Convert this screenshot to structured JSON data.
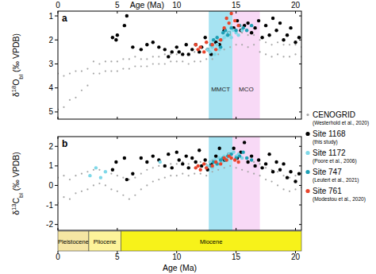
{
  "chart_data": [
    {
      "type": "scatter",
      "panel": "a",
      "xlabel": "Age (Ma)",
      "ylabel": "δ18Obl (‰ VPDB)",
      "xlim": [
        0,
        20.5
      ],
      "ylim": [
        5.3,
        0.8
      ],
      "xticks": [
        0,
        5,
        10,
        15,
        20
      ],
      "yticks": [
        1,
        2,
        3,
        4,
        5
      ],
      "legend": "right",
      "bands": [
        {
          "text": "MMCT",
          "x0": 12.7,
          "x1": 14.7,
          "color": "#a6e3f2"
        },
        {
          "text": "MCO",
          "x0": 14.7,
          "x1": 17,
          "color": "#f8d9f6"
        }
      ],
      "series": [
        {
          "name": "CENOGRID",
          "reference": "(Westerhold et al., 2020)",
          "color": "#a6a6a6",
          "marker": "dot",
          "x": [
            0,
            0,
            0.5,
            0.5,
            1,
            1,
            1.5,
            1.5,
            2,
            2,
            2.5,
            2.5,
            3,
            3,
            3.5,
            3.5,
            4,
            4,
            4.5,
            4.5,
            5,
            5,
            5.5,
            5.5,
            6,
            6,
            6.5,
            6.5,
            7,
            7,
            7.5,
            7.5,
            8,
            8,
            8.5,
            8.5,
            9,
            9,
            9.5,
            9.5,
            10,
            10,
            10.5,
            10.5,
            11,
            11,
            11.5,
            11.5,
            12,
            12,
            12.5,
            12.5,
            13,
            13,
            13.5,
            13.5,
            14,
            14,
            14.5,
            14.5,
            15,
            15,
            15.5,
            15.5,
            16,
            16,
            16.5,
            16.5,
            17,
            17,
            17.5,
            17.5,
            18,
            18,
            18.5,
            18.5,
            19,
            19,
            19.5,
            19.5,
            20,
            20,
            20.5,
            20.5
          ],
          "values": [
            3.4,
            4.9,
            3.5,
            4.8,
            3.4,
            4.5,
            3.3,
            4.4,
            3.3,
            4.1,
            3.2,
            3.9,
            2.9,
            3.4,
            3.0,
            3.4,
            2.9,
            3.3,
            2.9,
            3.3,
            2.9,
            3.3,
            2.8,
            3.2,
            2.8,
            3.2,
            2.7,
            3.1,
            2.8,
            3.1,
            2.8,
            3.1,
            2.7,
            3.0,
            2.7,
            3.0,
            2.6,
            3.0,
            2.6,
            2.9,
            2.6,
            2.9,
            2.6,
            2.9,
            2.6,
            3.0,
            2.5,
            2.9,
            2.5,
            2.9,
            2.4,
            2.8,
            2.3,
            2.8,
            2.0,
            2.6,
            1.9,
            2.4,
            1.8,
            2.3,
            1.7,
            2.2,
            1.7,
            2.2,
            1.8,
            2.3,
            1.8,
            2.2,
            2.0,
            2.5,
            2.1,
            2.6,
            2.2,
            2.7,
            2.1,
            2.6,
            2.2,
            2.7,
            2.2,
            2.7,
            2.2,
            2.6,
            2.3,
            2.7
          ]
        },
        {
          "name": "Site 1168",
          "reference": "(this study)",
          "color": "#000000",
          "marker": "circle",
          "x": [
            4.6,
            4.9,
            5.0,
            5.6,
            5.8,
            6.3,
            7.0,
            7.5,
            8.0,
            8.5,
            9.0,
            9.3,
            9.6,
            10.0,
            10.2,
            10.5,
            10.8,
            11.0,
            11.3,
            11.6,
            11.9,
            12.1,
            12.4,
            12.6,
            12.9,
            13.3,
            13.6,
            14.0,
            14.4,
            14.8,
            15.1,
            15.4,
            15.7,
            16.0,
            16.3,
            16.6,
            16.9,
            17.2,
            17.5,
            17.8,
            18.1,
            18.4,
            18.7,
            19.0,
            19.3,
            19.6,
            20.0,
            20.3
          ],
          "values": [
            1.9,
            2.0,
            1.8,
            1.4,
            1.0,
            2.3,
            2.4,
            2.2,
            2.1,
            2.3,
            2.4,
            2.7,
            2.5,
            2.3,
            2.5,
            2.6,
            2.2,
            2.6,
            2.4,
            2.2,
            2.5,
            2.3,
            1.9,
            2.4,
            2.6,
            2.1,
            2.2,
            1.6,
            1.7,
            1.5,
            1.2,
            1.6,
            1.4,
            1.3,
            1.7,
            1.5,
            1.2,
            1.9,
            1.4,
            1.8,
            1.1,
            1.6,
            1.3,
            2.0,
            1.8,
            1.5,
            2.1,
            1.9
          ]
        },
        {
          "name": "Site 1172",
          "reference": "(Poore et al., 2006)",
          "color": "#7fd8e8",
          "marker": "circle",
          "x": [
            12.6,
            12.8,
            13.0,
            13.2,
            13.4,
            13.6,
            13.8,
            14.0,
            14.2,
            14.4,
            14.6,
            14.8,
            15.0,
            15.2,
            15.5
          ],
          "values": [
            2.4,
            2.5,
            2.3,
            2.6,
            2.2,
            2.4,
            2.0,
            1.9,
            1.8,
            1.7,
            1.9,
            1.6,
            1.7,
            1.8,
            1.6
          ]
        },
        {
          "name": "Site 747",
          "reference": "(Leutert et al., 2021)",
          "color": "#1e9fb5",
          "marker": "circle",
          "x": [
            12.9,
            13.1,
            13.4,
            13.7,
            13.9,
            14.1,
            14.3,
            14.6,
            15.0,
            15.3,
            15.6,
            15.9,
            16.3
          ],
          "values": [
            2.2,
            2.0,
            1.9,
            2.3,
            1.7,
            1.6,
            1.8,
            1.5,
            1.6,
            1.4,
            1.5,
            1.6,
            1.4
          ]
        },
        {
          "name": "Site 761",
          "reference": "(Modestou et al., 2020)",
          "color": "#e8452c",
          "marker": "circle",
          "x": [
            11.6,
            11.8,
            12.0,
            12.3,
            12.5,
            13.0,
            13.3,
            13.7,
            14.0,
            14.2,
            14.4,
            14.6,
            14.9,
            15.2
          ],
          "values": [
            2.2,
            2.4,
            2.3,
            2.5,
            2.1,
            2.2,
            2.4,
            2.0,
            1.5,
            1.1,
            1.3,
            0.9,
            1.2,
            1.4
          ]
        }
      ]
    },
    {
      "type": "scatter",
      "panel": "b",
      "xlabel": "Age (Ma)",
      "ylabel": "δ13Cbl (‰ VPDB)",
      "xlim": [
        0,
        20.5
      ],
      "ylim": [
        -2.3,
        2.5
      ],
      "xticks": [
        0,
        5,
        10,
        15,
        20
      ],
      "yticks": [
        -2,
        -1,
        0,
        1,
        2
      ],
      "bands": [
        {
          "x0": 12.7,
          "x1": 14.7,
          "color": "#a6e3f2"
        },
        {
          "x0": 14.7,
          "x1": 17,
          "color": "#f8d9f6"
        }
      ],
      "epochs": [
        {
          "name": "Pleistocene",
          "start": 0,
          "end": 2.6,
          "color": "#f5e6a3"
        },
        {
          "name": "Pliocene",
          "start": 2.6,
          "end": 5.3,
          "color": "#fdf39a"
        },
        {
          "name": "Miocene",
          "start": 5.3,
          "end": 20.5,
          "color": "#f7f21a"
        }
      ],
      "series": [
        {
          "color": "#a6a6a6",
          "marker": "dot",
          "x": [
            0,
            0,
            0.5,
            0.5,
            1,
            1,
            1.5,
            1.5,
            2,
            2,
            2.5,
            2.5,
            3,
            3,
            3.5,
            3.5,
            4,
            4,
            4.5,
            4.5,
            5,
            5,
            5.5,
            5.5,
            6,
            6,
            6.5,
            6.5,
            7,
            7,
            7.5,
            7.5,
            8,
            8,
            8.5,
            8.5,
            9,
            9,
            9.5,
            9.5,
            10,
            10,
            10.5,
            10.5,
            11,
            11,
            11.5,
            11.5,
            12,
            12,
            12.5,
            12.5,
            13,
            13,
            13.5,
            13.5,
            14,
            14,
            14.5,
            14.5,
            15,
            15,
            15.5,
            15.5,
            16,
            16,
            16.5,
            16.5,
            17,
            17,
            17.5,
            17.5,
            18,
            18,
            18.5,
            18.5,
            19,
            19,
            19.5,
            19.5,
            20,
            20,
            20.5,
            20.5
          ],
          "values": [
            -0.9,
            0.4,
            -0.6,
            0.5,
            -0.7,
            0.3,
            -0.4,
            0.5,
            -0.3,
            0.6,
            -0.2,
            0.7,
            0.0,
            0.8,
            0.1,
            0.8,
            0.0,
            0.7,
            -0.2,
            0.6,
            -0.3,
            0.5,
            -0.5,
            0.4,
            -0.7,
            0.3,
            -0.5,
            0.4,
            -0.2,
            0.6,
            0.0,
            0.8,
            0.2,
            0.9,
            0.3,
            1.0,
            0.4,
            1.0,
            0.5,
            1.1,
            0.5,
            1.1,
            0.6,
            1.2,
            0.5,
            1.1,
            0.6,
            1.2,
            0.6,
            1.2,
            0.5,
            1.1,
            0.7,
            1.3,
            0.8,
            1.4,
            0.9,
            1.5,
            1.0,
            1.6,
            0.9,
            1.5,
            0.8,
            1.4,
            0.7,
            1.4,
            0.6,
            1.2,
            0.5,
            1.1,
            0.3,
            0.9,
            0.2,
            0.8,
            0.0,
            0.7,
            -0.2,
            0.5,
            -0.3,
            0.4,
            -0.2,
            0.5,
            -0.1,
            0.6
          ]
        },
        {
          "color": "#000000",
          "marker": "circle",
          "x": [
            4.6,
            4.9,
            5.6,
            5.8,
            6.3,
            7.0,
            7.5,
            8.0,
            8.5,
            9.0,
            9.3,
            9.6,
            10.0,
            10.2,
            10.5,
            10.8,
            11.0,
            11.3,
            11.6,
            11.9,
            12.1,
            12.4,
            12.6,
            12.9,
            13.3,
            13.6,
            14.0,
            14.4,
            14.8,
            15.1,
            15.4,
            15.7,
            16.0,
            16.3,
            16.6,
            16.9,
            17.2,
            17.5,
            17.8,
            18.1,
            18.4,
            18.7,
            19.0,
            19.3,
            19.6,
            20.0,
            20.3
          ],
          "values": [
            0.8,
            1.2,
            1.4,
            0.3,
            0.6,
            1.4,
            1.2,
            1.5,
            1.3,
            1.0,
            1.6,
            0.9,
            1.7,
            1.3,
            1.1,
            1.5,
            0.9,
            1.4,
            1.2,
            1.8,
            1.0,
            1.3,
            0.8,
            1.1,
            1.5,
            1.9,
            1.3,
            1.6,
            1.9,
            1.4,
            1.7,
            2.2,
            1.2,
            1.5,
            1.0,
            1.3,
            0.9,
            1.1,
            1.6,
            0.7,
            1.2,
            0.8,
            1.1,
            0.4,
            0.7,
            0.2,
            0.6
          ]
        },
        {
          "color": "#7fd8e8",
          "marker": "circle",
          "x": [
            2.7,
            3.2,
            3.6,
            4.0,
            8.6,
            12.6,
            12.8,
            13.0,
            13.2,
            13.4,
            13.6,
            13.8,
            14.0,
            14.2,
            14.4,
            14.6,
            14.8,
            15.0,
            15.2,
            15.5
          ],
          "values": [
            0.5,
            0.9,
            0.4,
            0.7,
            1.2,
            1.0,
            1.2,
            0.9,
            1.3,
            1.1,
            1.4,
            1.2,
            1.5,
            1.3,
            1.6,
            1.4,
            1.7,
            1.5,
            1.6,
            1.4
          ]
        },
        {
          "color": "#1e9fb5",
          "marker": "circle",
          "x": [
            12.9,
            13.1,
            13.4,
            13.7,
            13.9,
            14.1,
            14.3,
            14.6,
            15.0,
            15.3,
            15.6,
            15.9,
            16.3
          ],
          "values": [
            1.0,
            1.2,
            1.1,
            1.3,
            1.4,
            1.3,
            1.5,
            1.6,
            1.4,
            1.5,
            1.7,
            1.4,
            1.3
          ]
        },
        {
          "color": "#e8452c",
          "marker": "circle",
          "x": [
            11.6,
            11.8,
            12.0,
            12.3,
            12.5,
            13.0,
            13.3,
            13.7,
            14.0,
            14.2,
            14.4,
            14.6,
            14.9,
            15.2
          ],
          "values": [
            0.9,
            1.0,
            0.8,
            1.1,
            0.9,
            1.0,
            1.2,
            1.1,
            1.4,
            1.3,
            1.5,
            1.4,
            1.3,
            1.2
          ]
        }
      ]
    }
  ]
}
